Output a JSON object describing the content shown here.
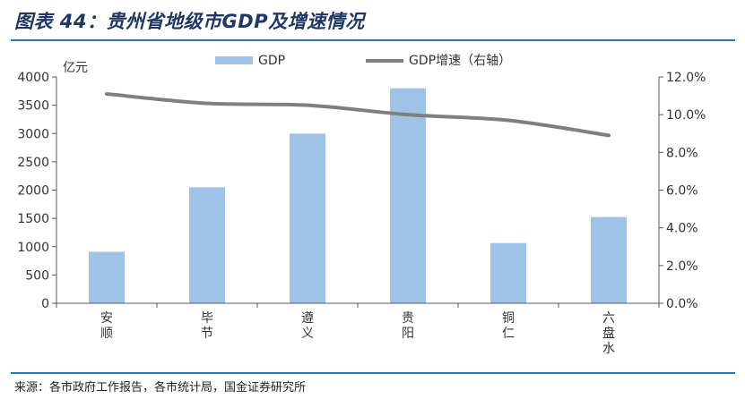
{
  "title": "图表 44：贵州省地级市GDP及增速情况",
  "source": "来源：各市政府工作报告，各市统计局，国金证券研究所",
  "colors": {
    "title": "#1f3864",
    "rule": "#2e75b6",
    "bar": "#9fc3e7",
    "line": "#7f7f7f"
  },
  "chart_data": {
    "type": "bar",
    "categories": [
      "安顺",
      "毕节",
      "遵义",
      "贵阳",
      "铜仁",
      "六盘水"
    ],
    "category_labels": [
      [
        "安",
        "顺"
      ],
      [
        "毕",
        "节"
      ],
      [
        "遵",
        "义"
      ],
      [
        "贵",
        "阳"
      ],
      [
        "铜",
        "仁"
      ],
      [
        "六",
        "盘",
        "水"
      ]
    ],
    "series": [
      {
        "name": "GDP",
        "type": "bar",
        "axis": "left",
        "values": [
          910,
          2050,
          3000,
          3800,
          1065,
          1525
        ]
      },
      {
        "name": "GDP增速（右轴）",
        "type": "line",
        "axis": "right",
        "values": [
          11.1,
          10.6,
          10.5,
          10.0,
          9.7,
          8.9
        ]
      }
    ],
    "ylabel": "亿元",
    "ylim": [
      0,
      4000
    ],
    "yticks": [
      "0",
      "500",
      "1000",
      "1500",
      "2000",
      "2500",
      "3000",
      "3500",
      "4000"
    ],
    "y2lim": [
      0,
      12
    ],
    "y2ticks": [
      "0.0%",
      "2.0%",
      "4.0%",
      "6.0%",
      "8.0%",
      "10.0%",
      "12.0%"
    ],
    "legend_position": "top-center",
    "grid": false
  }
}
